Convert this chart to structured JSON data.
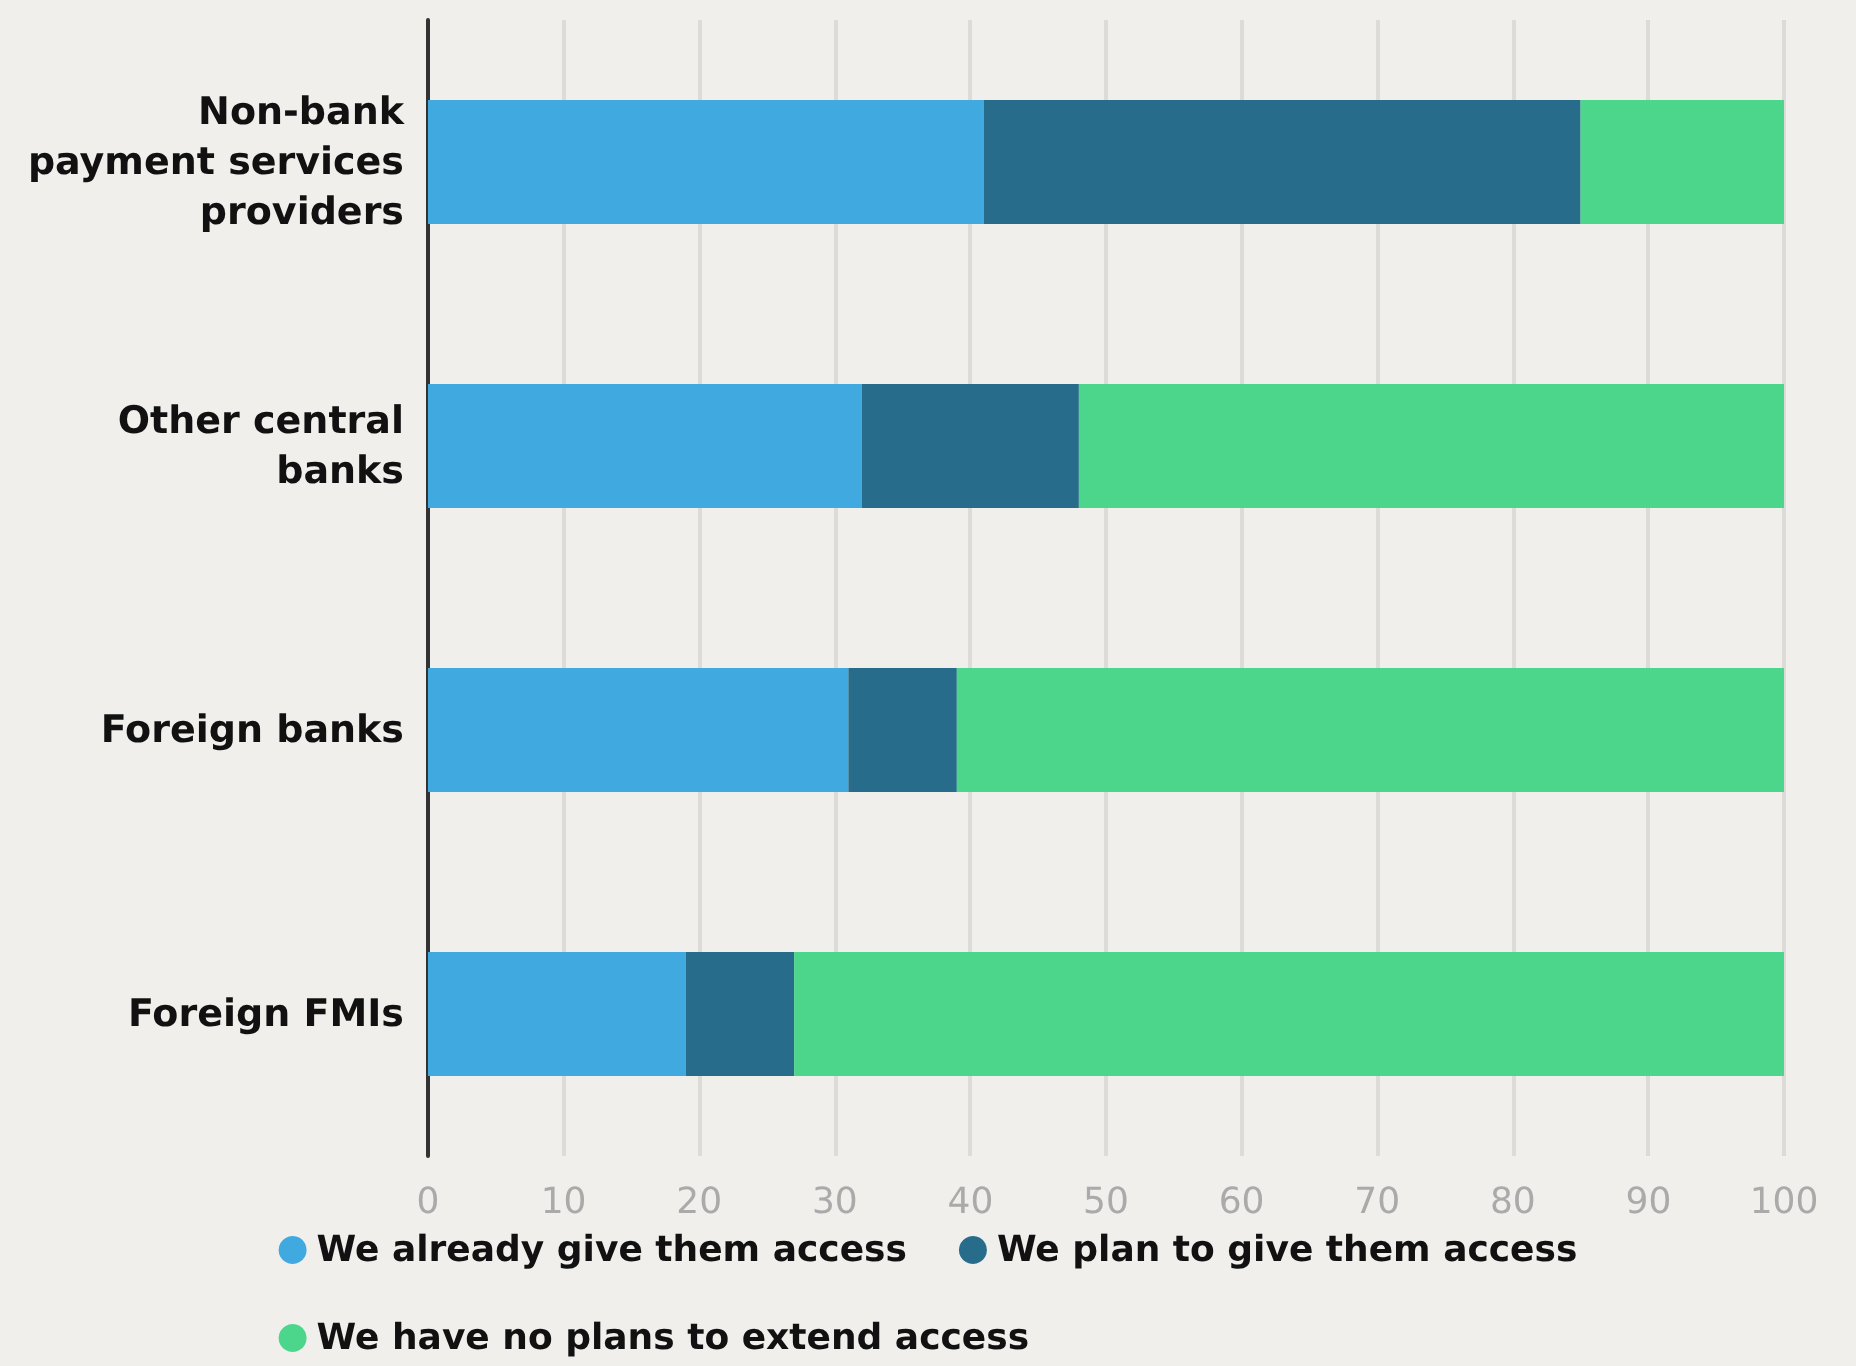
{
  "chart_data": {
    "type": "bar",
    "orientation": "horizontal",
    "stacked": true,
    "categories": [
      "Non-bank\npayment services\nproviders",
      "Other central\nbanks",
      "Foreign banks",
      "Foreign FMIs"
    ],
    "series": [
      {
        "name": "We already give them access",
        "color": "#3fa9e0",
        "values": [
          41,
          32,
          31,
          19
        ]
      },
      {
        "name": "We plan to give them access",
        "color": "#276d8b",
        "values": [
          44,
          16,
          8,
          8
        ]
      },
      {
        "name": "We have no plans to extend access",
        "color": "#4cd68b",
        "values": [
          15,
          52,
          61,
          73
        ]
      }
    ],
    "xlim": [
      0,
      100
    ],
    "xticks": [
      0,
      10,
      20,
      30,
      40,
      50,
      60,
      70,
      80,
      90,
      100
    ],
    "grid": "x",
    "legend": "bottom"
  }
}
